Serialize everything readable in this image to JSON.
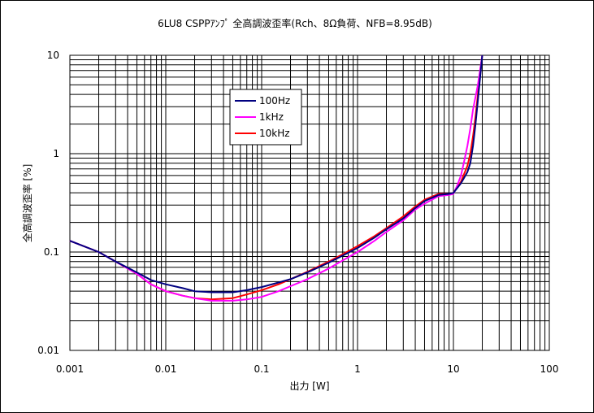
{
  "chart_data": {
    "type": "line",
    "title": "6LU8 CSPPｱﾝﾌﾟ 全高調波歪率(Rch、8Ω負荷、NFB=8.95dB)",
    "xlabel": "出力 [W]",
    "ylabel": "全高調波歪率 [%]",
    "xscale": "log",
    "yscale": "log",
    "xlim": [
      0.001,
      100
    ],
    "ylim": [
      0.01,
      10
    ],
    "grid": true,
    "legend_position": "upper-left inside plot",
    "x_tick_labels": [
      "0.001",
      "0.01",
      "0.1",
      "1",
      "10",
      "100"
    ],
    "y_tick_labels": [
      "0.01",
      "0.1",
      "1",
      "10"
    ],
    "series": [
      {
        "name": "100Hz",
        "color": "#000080",
        "points": [
          [
            0.001,
            0.13
          ],
          [
            0.002,
            0.1
          ],
          [
            0.003,
            0.08
          ],
          [
            0.005,
            0.062
          ],
          [
            0.007,
            0.052
          ],
          [
            0.01,
            0.047
          ],
          [
            0.015,
            0.043
          ],
          [
            0.02,
            0.04
          ],
          [
            0.03,
            0.039
          ],
          [
            0.05,
            0.039
          ],
          [
            0.07,
            0.041
          ],
          [
            0.1,
            0.044
          ],
          [
            0.15,
            0.049
          ],
          [
            0.2,
            0.053
          ],
          [
            0.3,
            0.062
          ],
          [
            0.5,
            0.078
          ],
          [
            0.7,
            0.092
          ],
          [
            1,
            0.11
          ],
          [
            1.5,
            0.14
          ],
          [
            2,
            0.17
          ],
          [
            3,
            0.22
          ],
          [
            4,
            0.28
          ],
          [
            5,
            0.33
          ],
          [
            7,
            0.38
          ],
          [
            9,
            0.39
          ],
          [
            10,
            0.4
          ],
          [
            12,
            0.5
          ],
          [
            14,
            0.65
          ],
          [
            15,
            0.8
          ],
          [
            16,
            1.2
          ],
          [
            17,
            2
          ],
          [
            18,
            3.5
          ],
          [
            19,
            6
          ],
          [
            20,
            10
          ]
        ]
      },
      {
        "name": "1kHz",
        "color": "#ff00ff",
        "points": [
          [
            0.001,
            0.13
          ],
          [
            0.002,
            0.1
          ],
          [
            0.003,
            0.08
          ],
          [
            0.005,
            0.06
          ],
          [
            0.007,
            0.047
          ],
          [
            0.01,
            0.04
          ],
          [
            0.015,
            0.036
          ],
          [
            0.02,
            0.034
          ],
          [
            0.03,
            0.032
          ],
          [
            0.05,
            0.032
          ],
          [
            0.07,
            0.033
          ],
          [
            0.1,
            0.035
          ],
          [
            0.15,
            0.04
          ],
          [
            0.2,
            0.045
          ],
          [
            0.3,
            0.053
          ],
          [
            0.5,
            0.068
          ],
          [
            0.7,
            0.082
          ],
          [
            1,
            0.1
          ],
          [
            1.5,
            0.13
          ],
          [
            2,
            0.16
          ],
          [
            3,
            0.21
          ],
          [
            4,
            0.27
          ],
          [
            5,
            0.31
          ],
          [
            7,
            0.37
          ],
          [
            9,
            0.38
          ],
          [
            10,
            0.39
          ],
          [
            11,
            0.48
          ],
          [
            12,
            0.6
          ],
          [
            13,
            0.85
          ],
          [
            14,
            1.2
          ],
          [
            15,
            1.8
          ],
          [
            16,
            2.8
          ],
          [
            18,
            5
          ],
          [
            20,
            10
          ]
        ]
      },
      {
        "name": "10kHz",
        "color": "#ff0000",
        "points": [
          [
            0.001,
            0.13
          ],
          [
            0.002,
            0.1
          ],
          [
            0.003,
            0.08
          ],
          [
            0.005,
            0.06
          ],
          [
            0.007,
            0.047
          ],
          [
            0.01,
            0.04
          ],
          [
            0.015,
            0.036
          ],
          [
            0.02,
            0.034
          ],
          [
            0.03,
            0.033
          ],
          [
            0.05,
            0.034
          ],
          [
            0.07,
            0.037
          ],
          [
            0.1,
            0.041
          ],
          [
            0.15,
            0.047
          ],
          [
            0.2,
            0.053
          ],
          [
            0.3,
            0.063
          ],
          [
            0.5,
            0.08
          ],
          [
            0.7,
            0.095
          ],
          [
            1,
            0.115
          ],
          [
            1.5,
            0.145
          ],
          [
            2,
            0.175
          ],
          [
            3,
            0.23
          ],
          [
            4,
            0.29
          ],
          [
            5,
            0.34
          ],
          [
            7,
            0.39
          ],
          [
            9,
            0.39
          ],
          [
            10,
            0.4
          ],
          [
            12,
            0.52
          ],
          [
            14,
            0.75
          ],
          [
            15,
            1
          ],
          [
            16,
            1.5
          ],
          [
            17,
            2.4
          ],
          [
            18,
            4
          ],
          [
            19,
            7
          ],
          [
            20,
            10
          ]
        ]
      }
    ]
  }
}
